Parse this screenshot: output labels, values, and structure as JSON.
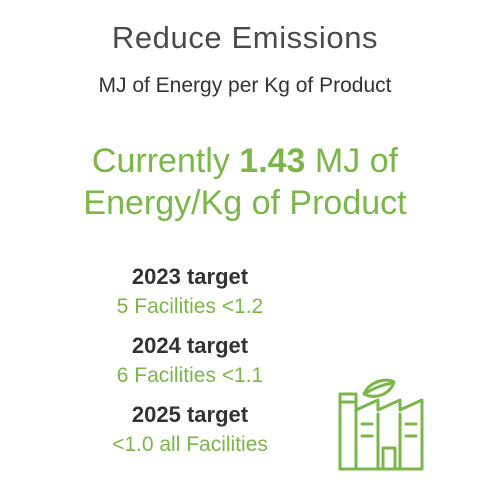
{
  "header": {
    "title": "Reduce Emissions",
    "subtitle": "MJ of Energy per Kg of Product"
  },
  "current": {
    "prefix": "Currently ",
    "value": "1.43",
    "suffix_line1": " MJ of",
    "line2": "Energy/Kg of Product"
  },
  "targets": [
    {
      "year_label": "2023 target",
      "detail": "5 Facilities <1.2"
    },
    {
      "year_label": "2024 target",
      "detail": "6 Facilities <1.1"
    },
    {
      "year_label": "2025 target",
      "detail": "<1.0 all Facilities"
    }
  ],
  "icon": {
    "name": "factory-leaf-icon",
    "color": "#7ab648"
  },
  "colors": {
    "accent": "#7ab648",
    "title": "#4a4a4a",
    "text": "#333333"
  }
}
